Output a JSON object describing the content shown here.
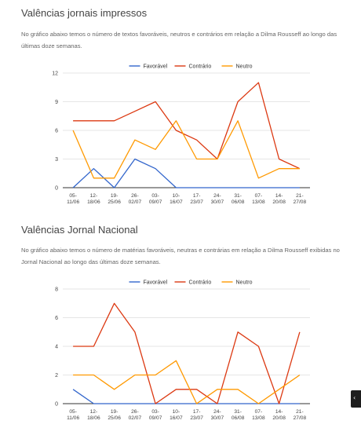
{
  "sections": [
    {
      "title": "Valências jornais impressos",
      "description": "No gráfico abaixo temos o número de textos favoráveis, neutros e contrários em relação a Dilma Rousseff ao longo das últimas doze semanas."
    },
    {
      "title": "Valências Jornal Nacional",
      "description": "No gráfico abaixo temos o número de matérias favoráveis, neutras e contrárias em relação a Dilma Rousseff exibidas no Jornal Nacional ao longo das últimas doze semanas."
    }
  ],
  "chart_data": [
    {
      "type": "line",
      "categories": [
        [
          "05-",
          "11/06"
        ],
        [
          "12-",
          "18/06"
        ],
        [
          "19-",
          "25/06"
        ],
        [
          "26-",
          "02/07"
        ],
        [
          "03-",
          "09/07"
        ],
        [
          "10-",
          "16/07"
        ],
        [
          "17-",
          "23/07"
        ],
        [
          "24-",
          "30/07"
        ],
        [
          "31-",
          "06/08"
        ],
        [
          "07-",
          "13/08"
        ],
        [
          "14-",
          "20/08"
        ],
        [
          "21-",
          "27/08"
        ]
      ],
      "ylim": [
        0,
        12
      ],
      "yticks": [
        0,
        3,
        6,
        9,
        12
      ],
      "grid": true,
      "legend_position": "top",
      "series": [
        {
          "name": "Favorável",
          "color": "#3366cc",
          "values": [
            0,
            2,
            0,
            3,
            2,
            0,
            0,
            0,
            0,
            0,
            0,
            0
          ]
        },
        {
          "name": "Contrário",
          "color": "#dc3912",
          "values": [
            7,
            7,
            7,
            8,
            9,
            6,
            5,
            3,
            9,
            11,
            3,
            2
          ]
        },
        {
          "name": "Neutro",
          "color": "#ff9900",
          "values": [
            6,
            1,
            1,
            5,
            4,
            7,
            3,
            3,
            7,
            1,
            2,
            2
          ]
        }
      ]
    },
    {
      "type": "line",
      "categories": [
        [
          "05-",
          "11/06"
        ],
        [
          "12-",
          "18/06"
        ],
        [
          "19-",
          "25/06"
        ],
        [
          "26-",
          "02/07"
        ],
        [
          "03-",
          "09/07"
        ],
        [
          "10-",
          "16/07"
        ],
        [
          "17-",
          "23/07"
        ],
        [
          "24-",
          "30/07"
        ],
        [
          "31-",
          "06/08"
        ],
        [
          "07-",
          "13/08"
        ],
        [
          "14-",
          "20/08"
        ],
        [
          "21-",
          "27/08"
        ]
      ],
      "ylim": [
        0,
        8
      ],
      "yticks": [
        0,
        2,
        4,
        6,
        8
      ],
      "grid": true,
      "legend_position": "top",
      "series": [
        {
          "name": "Favorável",
          "color": "#3366cc",
          "values": [
            1,
            0,
            0,
            0,
            0,
            0,
            0,
            0,
            0,
            0,
            0,
            0
          ]
        },
        {
          "name": "Contrário",
          "color": "#dc3912",
          "values": [
            4,
            4,
            7,
            5,
            0,
            1,
            1,
            0,
            5,
            4,
            0,
            5
          ]
        },
        {
          "name": "Neutro",
          "color": "#ff9900",
          "values": [
            2,
            2,
            1,
            2,
            2,
            3,
            0,
            1,
            1,
            0,
            1,
            2
          ]
        }
      ]
    }
  ]
}
